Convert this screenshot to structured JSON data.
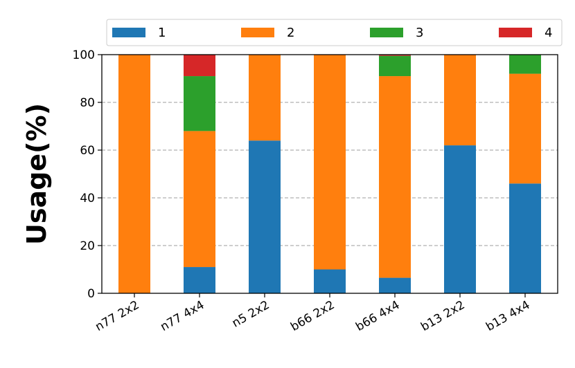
{
  "chart_data": {
    "type": "bar",
    "stacked": true,
    "categories": [
      "n77 2x2",
      "n77 4x4",
      "n5 2x2",
      "b66 2x2",
      "b66 4x4",
      "b13 2x2",
      "b13 4x4"
    ],
    "series": [
      {
        "name": "1",
        "color": "#1f77b4",
        "values": [
          0,
          11,
          64,
          10,
          6.5,
          62,
          46
        ]
      },
      {
        "name": "2",
        "color": "#ff7f0e",
        "values": [
          100,
          57,
          36,
          90,
          84.5,
          38,
          46
        ]
      },
      {
        "name": "3",
        "color": "#2ca02c",
        "values": [
          0,
          23,
          0,
          0,
          8.5,
          0,
          8
        ]
      },
      {
        "name": "4",
        "color": "#d62728",
        "values": [
          0,
          9,
          0,
          0,
          0.5,
          0,
          0
        ]
      }
    ],
    "ylabel": "Usage(%)",
    "xlabel": "",
    "title": "",
    "ylim": [
      0,
      100
    ],
    "yticks": [
      0,
      20,
      40,
      60,
      80,
      100
    ],
    "grid": "y-dashed",
    "legend": "top, horizontal"
  }
}
